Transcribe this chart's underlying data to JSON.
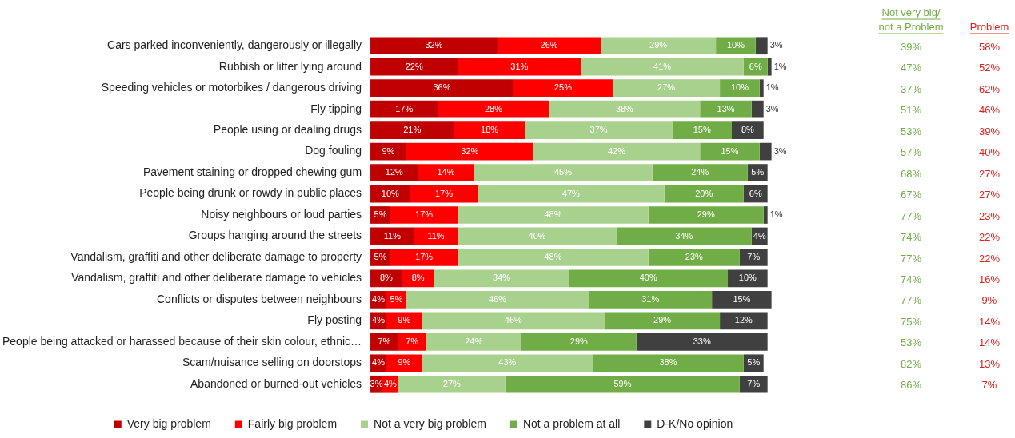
{
  "chart_data": {
    "type": "bar",
    "orientation": "horizontal",
    "stacked": true,
    "legend": "bottom",
    "categories": [
      "Cars parked inconveniently, dangerously or illegally",
      "Rubbish or litter lying around",
      "Speeding vehicles or motorbikes / dangerous driving",
      "Fly tipping",
      "People using or dealing drugs",
      "Dog fouling",
      "Pavement staining or dropped chewing gum",
      "People being drunk or rowdy in public places",
      "Noisy neighbours or loud parties",
      "Groups hanging around the streets",
      "Vandalism, graffiti and other deliberate damage to property",
      "Vandalism, graffiti and other deliberate damage to vehicles",
      "Conflicts or disputes between neighbours",
      "Fly posting",
      "People being attacked or harassed because of their skin colour, ethnic…",
      "Scam/nuisance selling on doorstops",
      "Abandoned or burned-out vehicles"
    ],
    "series": [
      {
        "name": "Very big problem",
        "color": "#c00000",
        "values": [
          32,
          22,
          36,
          17,
          21,
          9,
          12,
          10,
          5,
          11,
          5,
          8,
          4,
          4,
          7,
          4,
          3
        ],
        "value_labels": [
          "32%",
          "22%",
          "36%",
          "17%",
          "21%",
          "9%",
          "12%",
          "10%",
          "5%",
          "11%",
          "5%",
          "8%",
          "4%",
          "4%",
          "7%",
          "4%",
          "3%"
        ]
      },
      {
        "name": "Fairly big problem",
        "color": "#ff0000",
        "values": [
          26,
          31,
          25,
          28,
          18,
          32,
          14,
          17,
          17,
          11,
          17,
          8,
          5,
          9,
          7,
          9,
          4
        ],
        "value_labels": [
          "26%",
          "31%",
          "25%",
          "28%",
          "18%",
          "32%",
          "14%",
          "17%",
          "17%",
          "11%",
          "17%",
          "8%",
          "5%",
          "9%",
          "7%",
          "9%",
          "4%"
        ]
      },
      {
        "name": "Not a very big problem",
        "color": "#a9d18e",
        "values": [
          29,
          41,
          27,
          38,
          37,
          42,
          45,
          47,
          48,
          40,
          48,
          34,
          46,
          46,
          24,
          43,
          27
        ],
        "value_labels": [
          "29%",
          "41%",
          "27%",
          "38%",
          "37%",
          "42%",
          "45%",
          "47%",
          "48%",
          "40%",
          "48%",
          "34%",
          "46%",
          "46%",
          "24%",
          "43%",
          "27%"
        ]
      },
      {
        "name": "Not a problem at all",
        "color": "#70ad47",
        "values": [
          10,
          6,
          10,
          13,
          15,
          15,
          24,
          20,
          29,
          34,
          23,
          40,
          31,
          29,
          29,
          38,
          59
        ],
        "value_labels": [
          "10%",
          "6%",
          "10%",
          "13%",
          "15%",
          "15%",
          "24%",
          "20%",
          "29%",
          "34%",
          "23%",
          "40%",
          "31%",
          "29%",
          "29%",
          "38%",
          "59%"
        ]
      },
      {
        "name": "D-K/No opinion",
        "color": "#404040",
        "values": [
          3,
          1,
          1,
          3,
          8,
          3,
          5,
          6,
          1,
          4,
          7,
          10,
          15,
          12,
          33,
          5,
          7
        ],
        "value_labels": [
          "3%",
          "1%",
          "1%",
          "3%",
          "8%",
          "3%",
          "5%",
          "6%",
          "1%",
          "4%",
          "7%",
          "10%",
          "15%",
          "12%",
          "33%",
          "5%",
          "7%"
        ]
      }
    ],
    "annotations": [
      "Not very big/\nnot a Problem",
      "39%",
      "47%",
      "37%",
      "51%",
      "53%",
      "57%",
      "68%",
      "67%",
      "77%",
      "74%",
      "77%",
      "74%",
      "77%",
      "75%",
      "53%",
      "82%",
      "86%",
      "Problem",
      "58%",
      "52%",
      "62%",
      "46%",
      "39%",
      "40%",
      "27%",
      "27%",
      "23%",
      "22%",
      "22%",
      "16%",
      "9%",
      "14%",
      "14%",
      "13%",
      "7%"
    ]
  }
}
